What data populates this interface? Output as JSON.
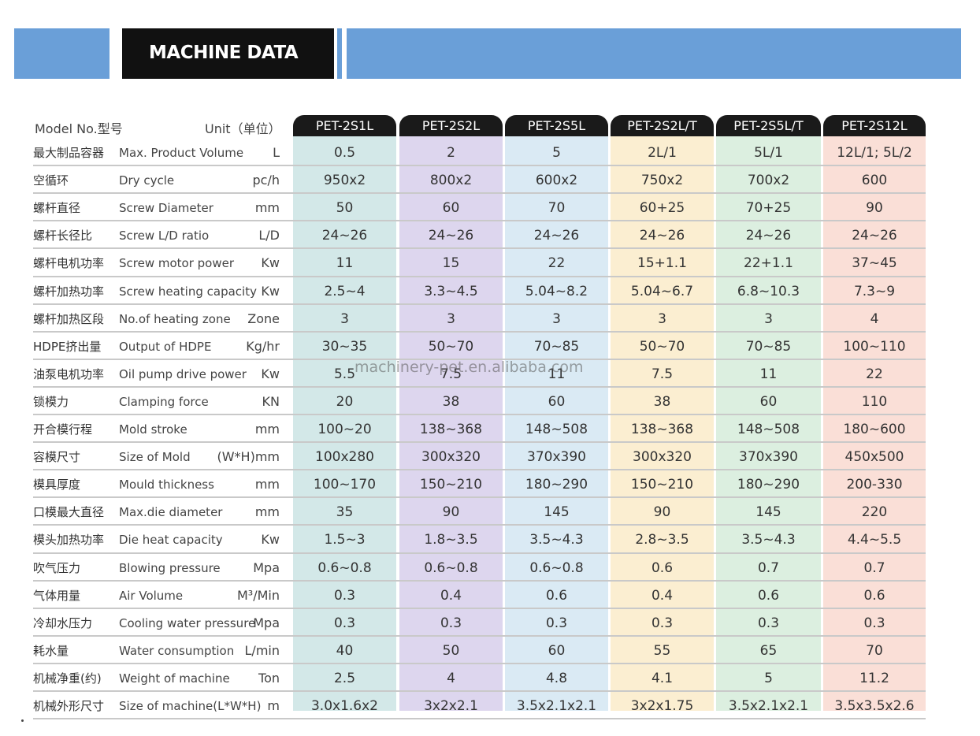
{
  "header": {
    "title": "MACHINE DATA"
  },
  "table": {
    "model_label": "Model No.型号",
    "unit_label": "Unit（单位）",
    "models": [
      "PET-2S1L",
      "PET-2S2L",
      "PET-2S5L",
      "PET-2S2L/T",
      "PET-2S5L/T",
      "PET-2S12L"
    ],
    "column_colors": [
      "#d3e8e8",
      "#ddd6ee",
      "#daeaf4",
      "#fbeed1",
      "#dcefe0",
      "#fadfd7"
    ],
    "rows": [
      {
        "cn": "最大制品容器",
        "en": "Max. Product Volume",
        "unit": "L",
        "values": [
          "0.5",
          "2",
          "5",
          "2L/1",
          "5L/1",
          "12L/1; 5L/2"
        ]
      },
      {
        "cn": "空循环",
        "en": "Dry cycle",
        "unit": "pc/h",
        "values": [
          "950x2",
          "800x2",
          "600x2",
          "750x2",
          "700x2",
          "600"
        ]
      },
      {
        "cn": "螺杆直径",
        "en": "Screw Diameter",
        "unit": "mm",
        "values": [
          "50",
          "60",
          "70",
          "60+25",
          "70+25",
          "90"
        ]
      },
      {
        "cn": "螺杆长径比",
        "en": "Screw L/D ratio",
        "unit": "L/D",
        "values": [
          "24~26",
          "24~26",
          "24~26",
          "24~26",
          "24~26",
          "24~26"
        ]
      },
      {
        "cn": "螺杆电机功率",
        "en": "Screw motor power",
        "unit": "Kw",
        "values": [
          "11",
          "15",
          "22",
          "15+1.1",
          "22+1.1",
          "37~45"
        ]
      },
      {
        "cn": "螺杆加热功率",
        "en": "Screw heating capacity",
        "unit": "Kw",
        "values": [
          "2.5~4",
          "3.3~4.5",
          "5.04~8.2",
          "5.04~6.7",
          "6.8~10.3",
          "7.3~9"
        ]
      },
      {
        "cn": "螺杆加热区段",
        "en": "No.of heating zone",
        "unit": "Zone",
        "values": [
          "3",
          "3",
          "3",
          "3",
          "3",
          "4"
        ]
      },
      {
        "cn": "HDPE挤出量",
        "en": "Output of HDPE",
        "unit": "Kg/hr",
        "values": [
          "30~35",
          "50~70",
          "70~85",
          "50~70",
          "70~85",
          "100~110"
        ]
      },
      {
        "cn": "油泵电机功率",
        "en": "Oil pump drive power",
        "unit": "Kw",
        "values": [
          "5.5",
          "7.5",
          "11",
          "7.5",
          "11",
          "22"
        ]
      },
      {
        "cn": "锁模力",
        "en": "Clamping force",
        "unit": "KN",
        "values": [
          "20",
          "38",
          "60",
          "38",
          "60",
          "110"
        ]
      },
      {
        "cn": "开合模行程",
        "en": "Mold stroke",
        "unit": "mm",
        "values": [
          "100~20",
          "138~368",
          "148~508",
          "138~368",
          "148~508",
          "180~600"
        ]
      },
      {
        "cn": "容模尺寸",
        "en": "Size of Mold",
        "unit": "(W*H)mm",
        "values": [
          "100x280",
          "300x320",
          "370x390",
          "300x320",
          "370x390",
          "450x500"
        ]
      },
      {
        "cn": "模具厚度",
        "en": "Mould thickness",
        "unit": "mm",
        "values": [
          "100~170",
          "150~210",
          "180~290",
          "150~210",
          "180~290",
          "200-330"
        ]
      },
      {
        "cn": "口模最大直径",
        "en": "Max.die diameter",
        "unit": "mm",
        "values": [
          "35",
          "90",
          "145",
          "90",
          "145",
          "220"
        ]
      },
      {
        "cn": "模头加热功率",
        "en": "Die heat capacity",
        "unit": "Kw",
        "values": [
          "1.5~3",
          "1.8~3.5",
          "3.5~4.3",
          "2.8~3.5",
          "3.5~4.3",
          "4.4~5.5"
        ]
      },
      {
        "cn": "吹气压力",
        "en": "Blowing pressure",
        "unit": "Mpa",
        "values": [
          "0.6~0.8",
          "0.6~0.8",
          "0.6~0.8",
          "0.6",
          "0.7",
          "0.7"
        ]
      },
      {
        "cn": "气体用量",
        "en": "Air Volume",
        "unit": "M³/Min",
        "values": [
          "0.3",
          "0.4",
          "0.6",
          "0.4",
          "0.6",
          "0.6"
        ]
      },
      {
        "cn": "冷却水压力",
        "en": "Cooling water pressure",
        "unit": "Mpa",
        "values": [
          "0.3",
          "0.3",
          "0.3",
          "0.3",
          "0.3",
          "0.3"
        ]
      },
      {
        "cn": "耗水量",
        "en": "Water consumption",
        "unit": "L/min",
        "values": [
          "40",
          "50",
          "60",
          "55",
          "65",
          "70"
        ]
      },
      {
        "cn": "机械净重(约)",
        "en": "Weight of machine",
        "unit": "Ton",
        "values": [
          "2.5",
          "4",
          "4.8",
          "4.1",
          "5",
          "11.2"
        ]
      },
      {
        "cn": "机械外形尺寸",
        "en": "Size of machine(L*W*H)",
        "unit": "m",
        "values": [
          "3.0x1.6x2",
          "3x2x2.1",
          "3.5x2.1x2.1",
          "3x2x1.75",
          "3.5x2.1x2.1",
          "3.5x3.5x2.6"
        ]
      }
    ]
  },
  "watermark": "machinery-pet.en.alibaba.com"
}
